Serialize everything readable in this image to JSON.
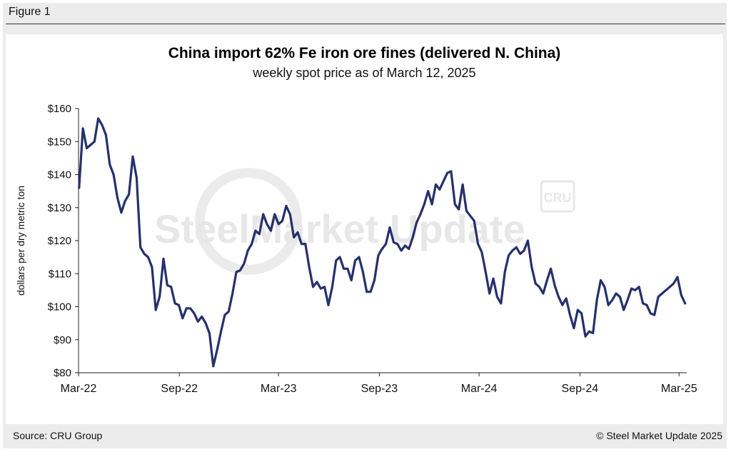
{
  "figure_label": "Figure 1",
  "source": "Source: CRU Group",
  "copyright": "© Steel Market Update 2025",
  "watermark": {
    "text": "SteelMarket Update",
    "badge": "CRU",
    "color": "#d8d8d8"
  },
  "colors": {
    "line": "#26306b",
    "axis": "#222222"
  },
  "chart_data": {
    "type": "line",
    "title": "China import 62% Fe iron ore fines (delivered N. China)",
    "subtitle": "weekly spot price as of March 12, 2025",
    "ylabel": "dollars per dry metric ton",
    "xlabel": "",
    "ylim": [
      80,
      160
    ],
    "yticks": [
      {
        "value": 160,
        "label": "$160"
      },
      {
        "value": 150,
        "label": "$150"
      },
      {
        "value": 140,
        "label": "$140"
      },
      {
        "value": 130,
        "label": "$130"
      },
      {
        "value": 120,
        "label": "$120"
      },
      {
        "value": 110,
        "label": "$110"
      },
      {
        "value": 100,
        "label": "$100"
      },
      {
        "value": 90,
        "label": "$90"
      },
      {
        "value": 80,
        "label": "$80"
      }
    ],
    "xlim": [
      "2022-03-01",
      "2025-03-15"
    ],
    "xticks": [
      {
        "value": "2022-03-01",
        "label": "Mar-22"
      },
      {
        "value": "2022-09-01",
        "label": "Sep-22"
      },
      {
        "value": "2023-03-01",
        "label": "Mar-23"
      },
      {
        "value": "2023-09-01",
        "label": "Sep-23"
      },
      {
        "value": "2024-03-01",
        "label": "Mar-24"
      },
      {
        "value": "2024-09-01",
        "label": "Sep-24"
      },
      {
        "value": "2025-03-01",
        "label": "Mar-25"
      }
    ],
    "grid": false,
    "series": [
      {
        "name": "",
        "x": [
          "2022-03-02",
          "2022-03-09",
          "2022-03-16",
          "2022-03-23",
          "2022-03-30",
          "2022-04-06",
          "2022-04-13",
          "2022-04-20",
          "2022-04-27",
          "2022-05-04",
          "2022-05-11",
          "2022-05-18",
          "2022-05-25",
          "2022-06-01",
          "2022-06-08",
          "2022-06-15",
          "2022-06-22",
          "2022-06-29",
          "2022-07-06",
          "2022-07-13",
          "2022-07-20",
          "2022-07-27",
          "2022-08-03",
          "2022-08-10",
          "2022-08-17",
          "2022-08-24",
          "2022-08-31",
          "2022-09-07",
          "2022-09-14",
          "2022-09-21",
          "2022-09-28",
          "2022-10-05",
          "2022-10-12",
          "2022-10-19",
          "2022-10-26",
          "2022-11-02",
          "2022-11-09",
          "2022-11-16",
          "2022-11-23",
          "2022-11-30",
          "2022-12-07",
          "2022-12-14",
          "2022-12-21",
          "2022-12-28",
          "2023-01-04",
          "2023-01-11",
          "2023-01-18",
          "2023-01-25",
          "2023-02-01",
          "2023-02-08",
          "2023-02-15",
          "2023-02-22",
          "2023-03-01",
          "2023-03-08",
          "2023-03-15",
          "2023-03-22",
          "2023-03-29",
          "2023-04-05",
          "2023-04-12",
          "2023-04-19",
          "2023-04-26",
          "2023-05-03",
          "2023-05-10",
          "2023-05-17",
          "2023-05-24",
          "2023-05-31",
          "2023-06-07",
          "2023-06-14",
          "2023-06-21",
          "2023-06-28",
          "2023-07-05",
          "2023-07-12",
          "2023-07-19",
          "2023-07-26",
          "2023-08-02",
          "2023-08-09",
          "2023-08-16",
          "2023-08-23",
          "2023-08-30",
          "2023-09-06",
          "2023-09-13",
          "2023-09-20",
          "2023-09-27",
          "2023-10-04",
          "2023-10-11",
          "2023-10-18",
          "2023-10-25",
          "2023-11-01",
          "2023-11-08",
          "2023-11-15",
          "2023-11-22",
          "2023-11-29",
          "2023-12-06",
          "2023-12-13",
          "2023-12-20",
          "2023-12-27",
          "2024-01-03",
          "2024-01-10",
          "2024-01-17",
          "2024-01-24",
          "2024-01-31",
          "2024-02-07",
          "2024-02-14",
          "2024-02-21",
          "2024-02-28",
          "2024-03-06",
          "2024-03-13",
          "2024-03-20",
          "2024-03-27",
          "2024-04-03",
          "2024-04-10",
          "2024-04-17",
          "2024-04-24",
          "2024-05-01",
          "2024-05-08",
          "2024-05-15",
          "2024-05-22",
          "2024-05-29",
          "2024-06-05",
          "2024-06-12",
          "2024-06-19",
          "2024-06-26",
          "2024-07-03",
          "2024-07-10",
          "2024-07-17",
          "2024-07-24",
          "2024-07-31",
          "2024-08-07",
          "2024-08-14",
          "2024-08-21",
          "2024-08-28",
          "2024-09-04",
          "2024-09-11",
          "2024-09-18",
          "2024-09-25",
          "2024-10-02",
          "2024-10-09",
          "2024-10-16",
          "2024-10-23",
          "2024-10-30",
          "2024-11-06",
          "2024-11-13",
          "2024-11-20",
          "2024-11-27",
          "2024-12-04",
          "2024-12-11",
          "2024-12-18",
          "2024-12-25",
          "2025-01-01",
          "2025-01-08",
          "2025-01-15",
          "2025-01-22",
          "2025-01-29",
          "2025-02-05",
          "2025-02-12",
          "2025-02-19",
          "2025-02-26",
          "2025-03-05",
          "2025-03-12"
        ],
        "values": [
          136,
          154,
          148,
          149,
          150,
          157,
          155,
          152,
          143,
          140,
          133,
          128.5,
          132,
          134,
          145.5,
          139,
          118,
          116,
          115,
          112,
          99,
          103,
          114.5,
          106.5,
          106,
          101,
          100.5,
          96.5,
          99.5,
          99.5,
          98,
          95.5,
          97,
          95,
          92,
          82,
          87,
          92.5,
          97.5,
          98.5,
          104,
          110.5,
          111,
          113,
          117,
          119,
          123,
          122,
          128,
          125,
          123,
          128,
          125,
          126,
          130.5,
          128,
          121,
          122.5,
          119,
          119,
          112,
          106,
          107.5,
          105.5,
          106,
          100.5,
          106,
          114,
          115,
          111.5,
          111.5,
          108,
          114,
          115,
          110.5,
          104.5,
          104.5,
          108,
          115.5,
          117.5,
          119,
          124,
          119.5,
          119,
          117,
          118.5,
          117.5,
          121,
          125.5,
          128,
          131,
          135,
          131,
          137,
          135.5,
          138,
          140.5,
          141,
          131,
          129.5,
          137,
          129,
          127.5,
          126,
          119,
          116.5,
          110.5,
          104,
          108.5,
          103,
          101,
          110.5,
          115.5,
          117,
          118,
          116,
          117,
          120,
          112,
          107,
          106,
          104,
          108,
          111.5,
          106.5,
          103,
          100.5,
          102.5,
          97.5,
          93.5,
          99,
          98,
          91,
          92.5,
          92,
          102,
          108,
          106,
          100.5,
          102,
          104,
          103,
          99,
          102,
          105.5,
          105,
          106,
          101,
          100.5,
          98,
          97.5,
          103,
          104,
          105,
          106,
          107,
          109,
          103.5,
          101
        ]
      }
    ]
  }
}
